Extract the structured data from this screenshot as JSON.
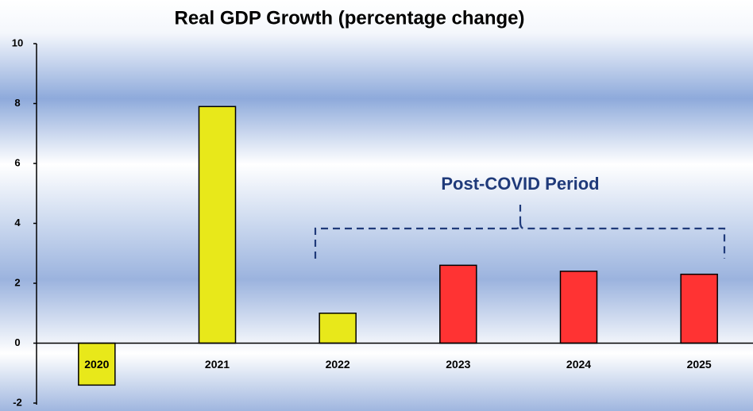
{
  "chart_data": {
    "type": "bar",
    "title": "Real GDP Growth (percentage change)",
    "categories": [
      "2020",
      "2021",
      "2022",
      "2023",
      "2024",
      "2025"
    ],
    "values": [
      -1.4,
      7.9,
      1.0,
      2.6,
      2.4,
      2.3
    ],
    "colors": [
      "#e8e81a",
      "#e8e81a",
      "#e8e81a",
      "#ff3333",
      "#ff3333",
      "#ff3333"
    ],
    "ylim": [
      -2,
      10
    ],
    "yticks": [
      -2,
      0,
      2,
      4,
      6,
      8,
      10
    ],
    "grid": false,
    "annotation": "Post-COVID Period"
  }
}
